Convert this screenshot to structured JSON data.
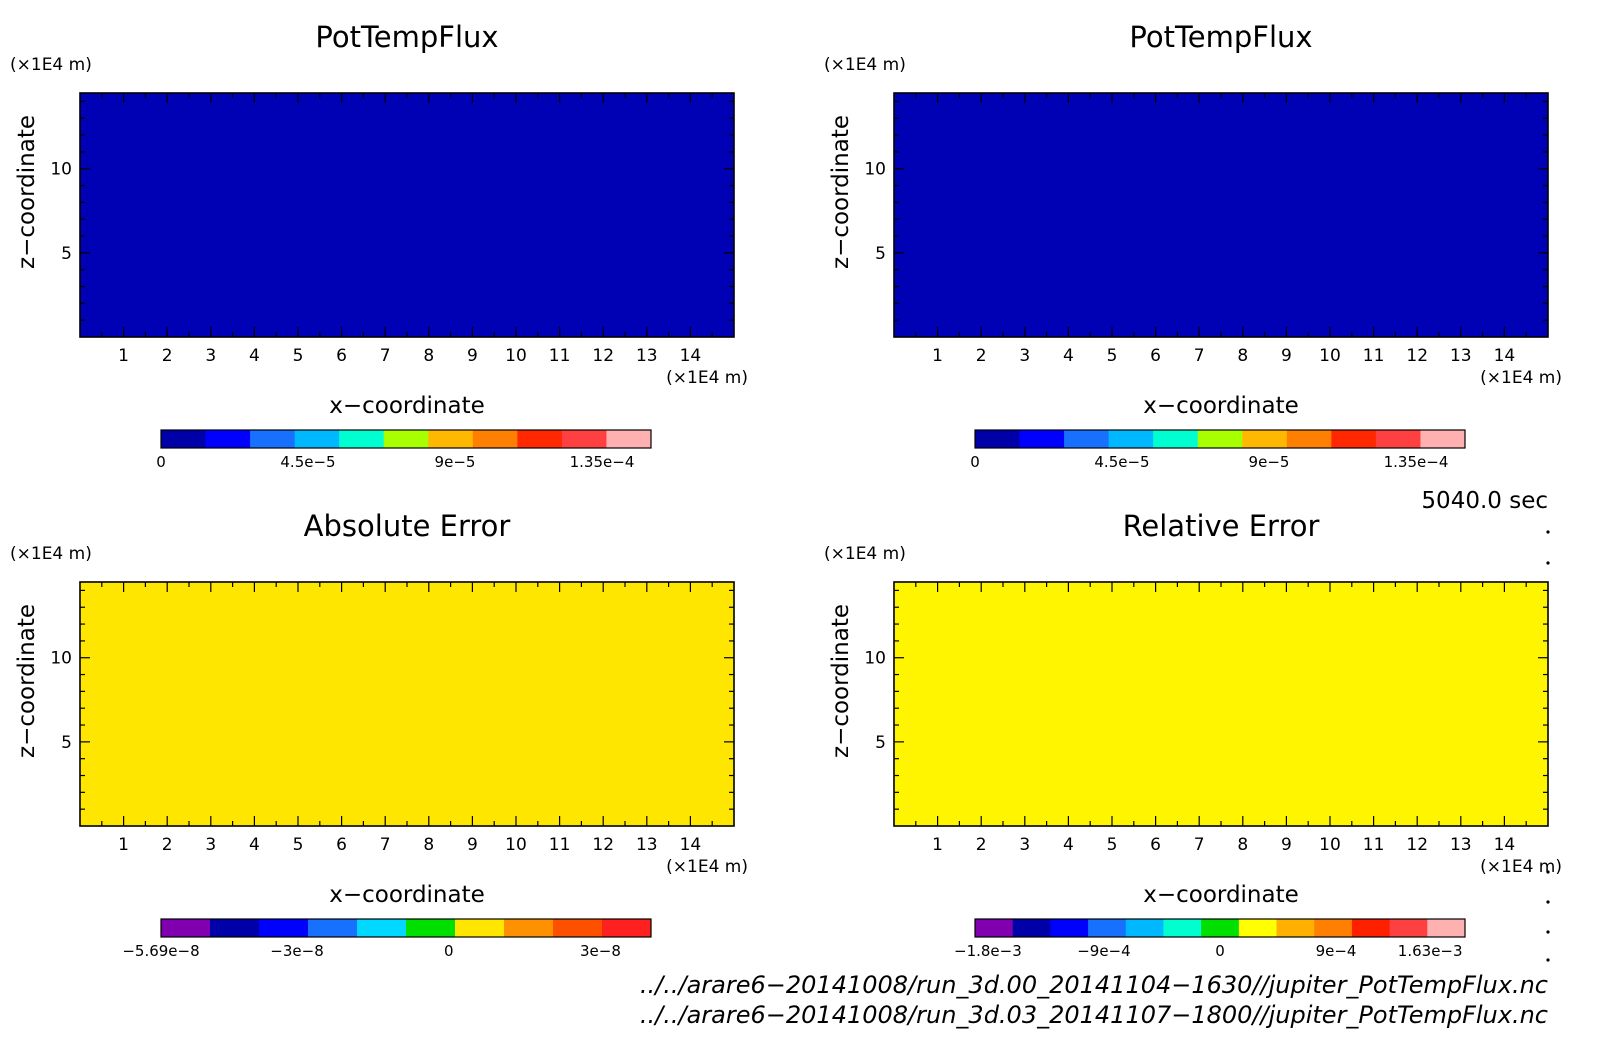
{
  "chart_data": [
    {
      "type": "heatmap",
      "title": "PotTempFlux",
      "xlabel": "x−coordinate",
      "ylabel": "z−coordinate",
      "x_unit": "(×1E4 m)",
      "y_unit": "(×1E4 m)",
      "xlim": [
        0,
        15
      ],
      "ylim": [
        0,
        14.5
      ],
      "xticks": [
        "1",
        "2",
        "3",
        "4",
        "5",
        "6",
        "7",
        "8",
        "9",
        "10",
        "11",
        "12",
        "13",
        "14"
      ],
      "yticks": [
        "5",
        "10"
      ],
      "xtick_values": [
        1,
        2,
        3,
        4,
        5,
        6,
        7,
        8,
        9,
        10,
        11,
        12,
        13,
        14
      ],
      "ytick_values": [
        5,
        10
      ],
      "field_value": 0,
      "field_color": "#0000b4",
      "colorbar": {
        "labels": [
          "0",
          "4.5e−5",
          "9e−5",
          "1.35e−4"
        ],
        "label_values": [
          0,
          4.5e-05,
          9e-05,
          0.000135
        ],
        "min": 0,
        "max": 0.00015,
        "colors": [
          "#0000a8",
          "#0000ff",
          "#1870ff",
          "#00b8ff",
          "#00ffd0",
          "#a8ff00",
          "#ffb800",
          "#ff8000",
          "#ff2800",
          "#ff4040",
          "#ffb0b0"
        ]
      }
    },
    {
      "type": "heatmap",
      "title": "PotTempFlux",
      "xlabel": "x−coordinate",
      "ylabel": "z−coordinate",
      "x_unit": "(×1E4 m)",
      "y_unit": "(×1E4 m)",
      "xlim": [
        0,
        15
      ],
      "ylim": [
        0,
        14.5
      ],
      "xticks": [
        "1",
        "2",
        "3",
        "4",
        "5",
        "6",
        "7",
        "8",
        "9",
        "10",
        "11",
        "12",
        "13",
        "14"
      ],
      "yticks": [
        "5",
        "10"
      ],
      "xtick_values": [
        1,
        2,
        3,
        4,
        5,
        6,
        7,
        8,
        9,
        10,
        11,
        12,
        13,
        14
      ],
      "ytick_values": [
        5,
        10
      ],
      "field_value": 0,
      "field_color": "#0000b4",
      "colorbar": {
        "labels": [
          "0",
          "4.5e−5",
          "9e−5",
          "1.35e−4"
        ],
        "label_values": [
          0,
          4.5e-05,
          9e-05,
          0.000135
        ],
        "min": 0,
        "max": 0.00015,
        "colors": [
          "#0000a8",
          "#0000ff",
          "#1870ff",
          "#00b8ff",
          "#00ffd0",
          "#a8ff00",
          "#ffb800",
          "#ff8000",
          "#ff2800",
          "#ff4040",
          "#ffb0b0"
        ]
      }
    },
    {
      "type": "heatmap",
      "title": "Absolute Error",
      "xlabel": "x−coordinate",
      "ylabel": "z−coordinate",
      "x_unit": "(×1E4 m)",
      "y_unit": "(×1E4 m)",
      "xlim": [
        0,
        15
      ],
      "ylim": [
        0,
        14.5
      ],
      "xticks": [
        "1",
        "2",
        "3",
        "4",
        "5",
        "6",
        "7",
        "8",
        "9",
        "10",
        "11",
        "12",
        "13",
        "14"
      ],
      "yticks": [
        "5",
        "10"
      ],
      "xtick_values": [
        1,
        2,
        3,
        4,
        5,
        6,
        7,
        8,
        9,
        10,
        11,
        12,
        13,
        14
      ],
      "ytick_values": [
        5,
        10
      ],
      "field_value": 0,
      "field_color": "#ffe600",
      "colorbar": {
        "labels": [
          "−5.69e−8",
          "−3e−8",
          "0",
          "3e−8"
        ],
        "label_values": [
          -5.69e-08,
          -3e-08,
          0,
          3e-08
        ],
        "min": -5.69e-08,
        "max": 4e-08,
        "colors": [
          "#8000b0",
          "#0000a8",
          "#0000ff",
          "#1870ff",
          "#00d8ff",
          "#00e000",
          "#ffe600",
          "#ff9000",
          "#ff5000",
          "#ff2020"
        ]
      }
    },
    {
      "type": "heatmap",
      "title": "Relative Error",
      "xlabel": "x−coordinate",
      "ylabel": "z−coordinate",
      "x_unit": "(×1E4 m)",
      "y_unit": "(×1E4 m)",
      "xlim": [
        0,
        15
      ],
      "ylim": [
        0,
        14.5
      ],
      "xticks": [
        "1",
        "2",
        "3",
        "4",
        "5",
        "6",
        "7",
        "8",
        "9",
        "10",
        "11",
        "12",
        "13",
        "14"
      ],
      "yticks": [
        "5",
        "10"
      ],
      "xtick_values": [
        1,
        2,
        3,
        4,
        5,
        6,
        7,
        8,
        9,
        10,
        11,
        12,
        13,
        14
      ],
      "ytick_values": [
        5,
        10
      ],
      "field_value": 0,
      "field_color": "#fff500",
      "colorbar": {
        "labels": [
          "−1.8e−3",
          "−9e−4",
          "0",
          "9e−4",
          "1.63e−3"
        ],
        "label_values": [
          -0.0018,
          -0.0009,
          0,
          0.0009,
          0.00163
        ],
        "min": -0.0019,
        "max": 0.0019,
        "colors": [
          "#8000b0",
          "#0000a8",
          "#0000ff",
          "#1870ff",
          "#00b8ff",
          "#00ffd0",
          "#00e000",
          "#ffff00",
          "#ffb000",
          "#ff8000",
          "#ff2000",
          "#ff4040",
          "#ffb0b0"
        ]
      }
    }
  ],
  "footer": {
    "time_label": "5040.0 sec",
    "file_paths": [
      "../../arare6−20141008/run_3d.00_20141104−1630//jupiter_PotTempFlux.nc",
      "../../arare6−20141008/run_3d.03_20141107−1800//jupiter_PotTempFlux.nc"
    ]
  }
}
